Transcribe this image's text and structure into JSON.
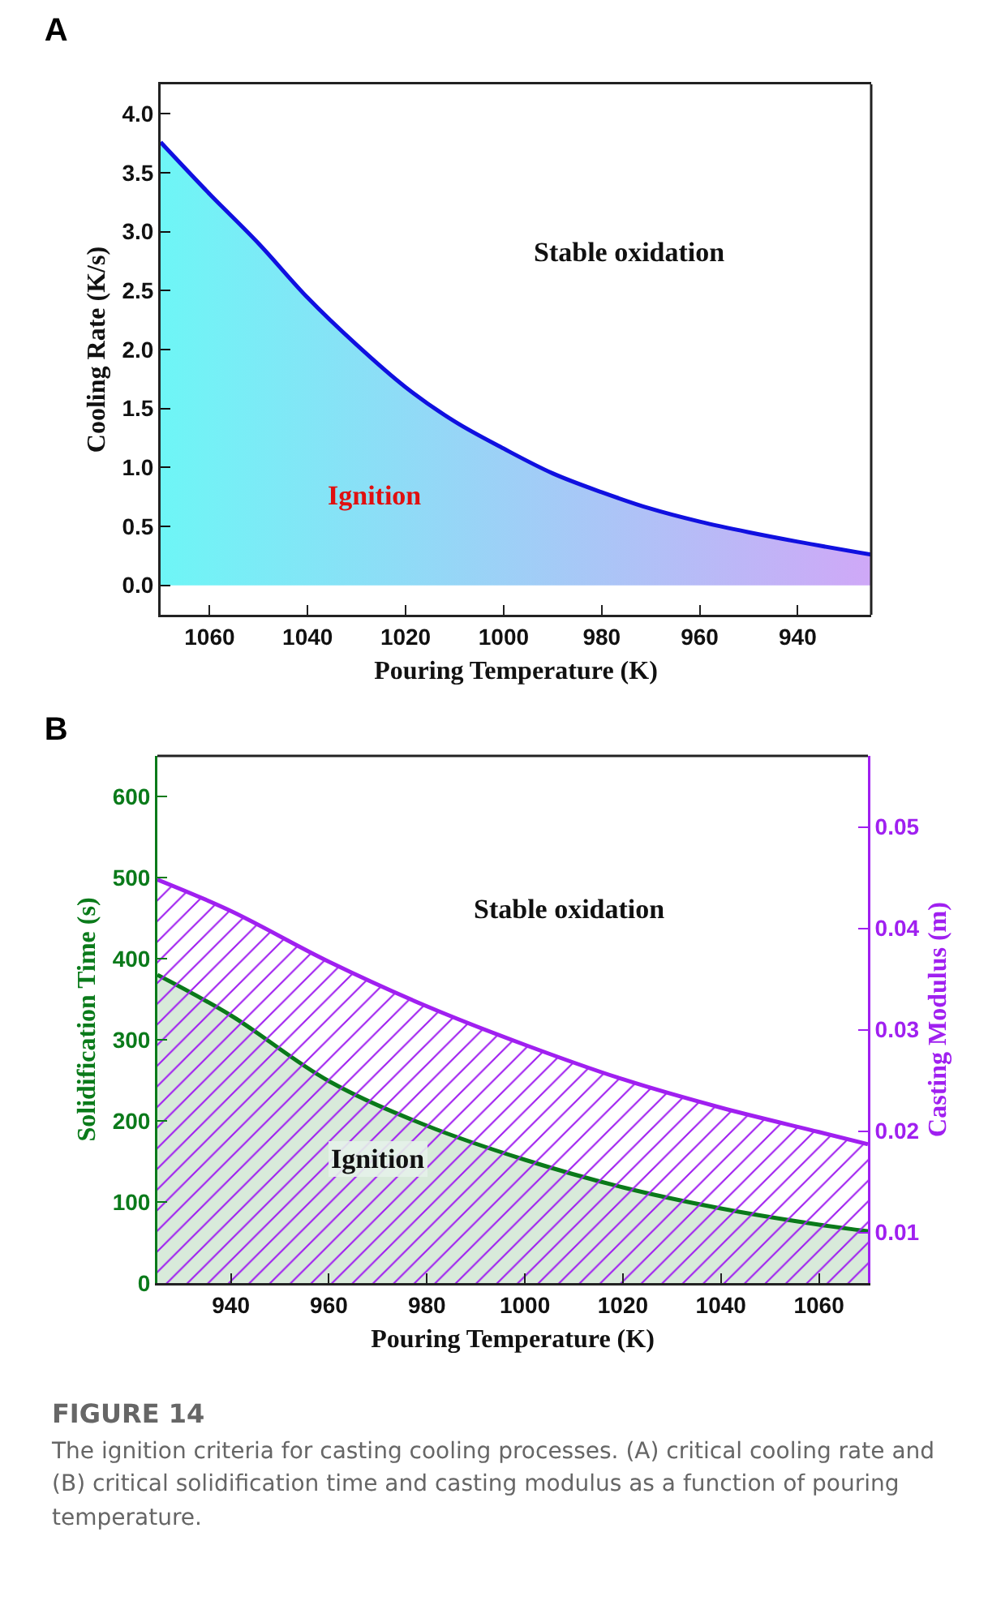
{
  "chart_data": [
    {
      "type": "area",
      "title": "A",
      "xlabel": "Pouring Temperature (K)",
      "ylabel": "Cooling Rate (K/s)",
      "x": [
        1070,
        1060,
        1050,
        1040,
        1030,
        1020,
        1010,
        1000,
        990,
        980,
        970,
        960,
        950,
        940,
        925
      ],
      "series": [
        {
          "color": "#1010e0",
          "values": [
            3.76,
            3.32,
            2.9,
            2.44,
            2.04,
            1.68,
            1.39,
            1.16,
            0.95,
            0.79,
            0.65,
            0.54,
            0.45,
            0.37,
            0.26
          ]
        }
      ],
      "xlim": [
        1070,
        925
      ],
      "xticks": [
        1060,
        1040,
        1020,
        1000,
        980,
        960,
        940
      ],
      "ylim": [
        -0.25,
        4.25
      ],
      "yticks": [
        {
          "value": 0,
          "label": "0.0"
        },
        0.5,
        {
          "value": 1,
          "label": "1.0"
        },
        1.5,
        {
          "value": 2,
          "label": "2.0"
        },
        2.5,
        {
          "value": 3,
          "label": "3.0"
        },
        3.5,
        {
          "value": 4,
          "label": "4.0"
        }
      ],
      "annotations": [
        "Stable oxidation",
        "Ignition"
      ]
    },
    {
      "type": "area",
      "title": "B",
      "xlabel": "Pouring Temperature (K)",
      "ylabel": "Solidification Time (s)",
      "y2label": "Casting Modulus (m)",
      "x": [
        925,
        940,
        960,
        980,
        1000,
        1020,
        1040,
        1060,
        1070
      ],
      "series": [
        {
          "color": "#0a7a1a",
          "values": [
            380,
            330,
            249,
            194,
            152,
            118,
            92,
            72,
            64
          ]
        },
        {
          "color": "#a020f0",
          "axis": "y2",
          "values": [
            0.0448,
            0.0417,
            0.0367,
            0.0323,
            0.0285,
            0.0251,
            0.0223,
            0.0199,
            0.0187
          ]
        }
      ],
      "xlim": [
        925,
        1070
      ],
      "xticks": [
        940,
        960,
        980,
        1000,
        1020,
        1040,
        1060
      ],
      "ylim": [
        0,
        650
      ],
      "yticks": [
        0,
        100,
        200,
        300,
        400,
        500,
        600
      ],
      "y2lim": [
        0.005,
        0.057
      ],
      "y2ticks": [
        0.01,
        0.02,
        0.03,
        0.04,
        0.05
      ],
      "annotations": [
        "Stable oxidation",
        "Ignition",
        "FIGURE 14",
        "The ignition criteria for casting cooling processes. (A) critical cooling rate and (B) critical solidification time and casting modulus as a function of pouring temperature."
      ]
    }
  ]
}
